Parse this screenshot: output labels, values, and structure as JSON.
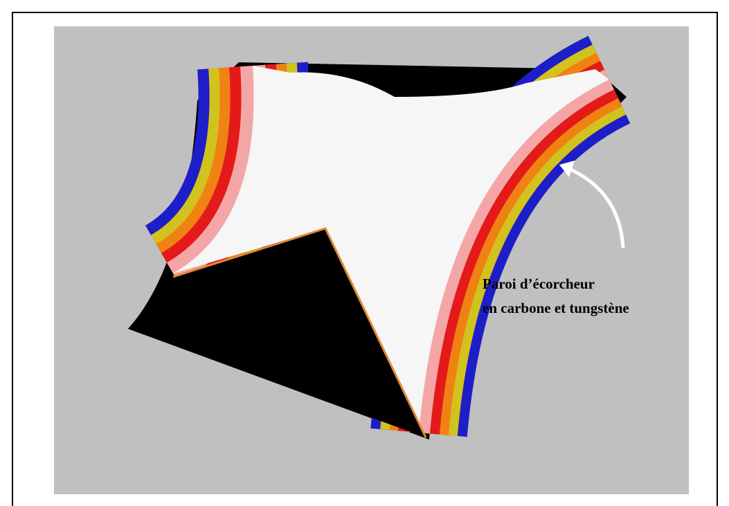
{
  "annotation": {
    "lines": [
      "Paroi d’écorcheur",
      "en carbone et tungstène"
    ]
  }
}
